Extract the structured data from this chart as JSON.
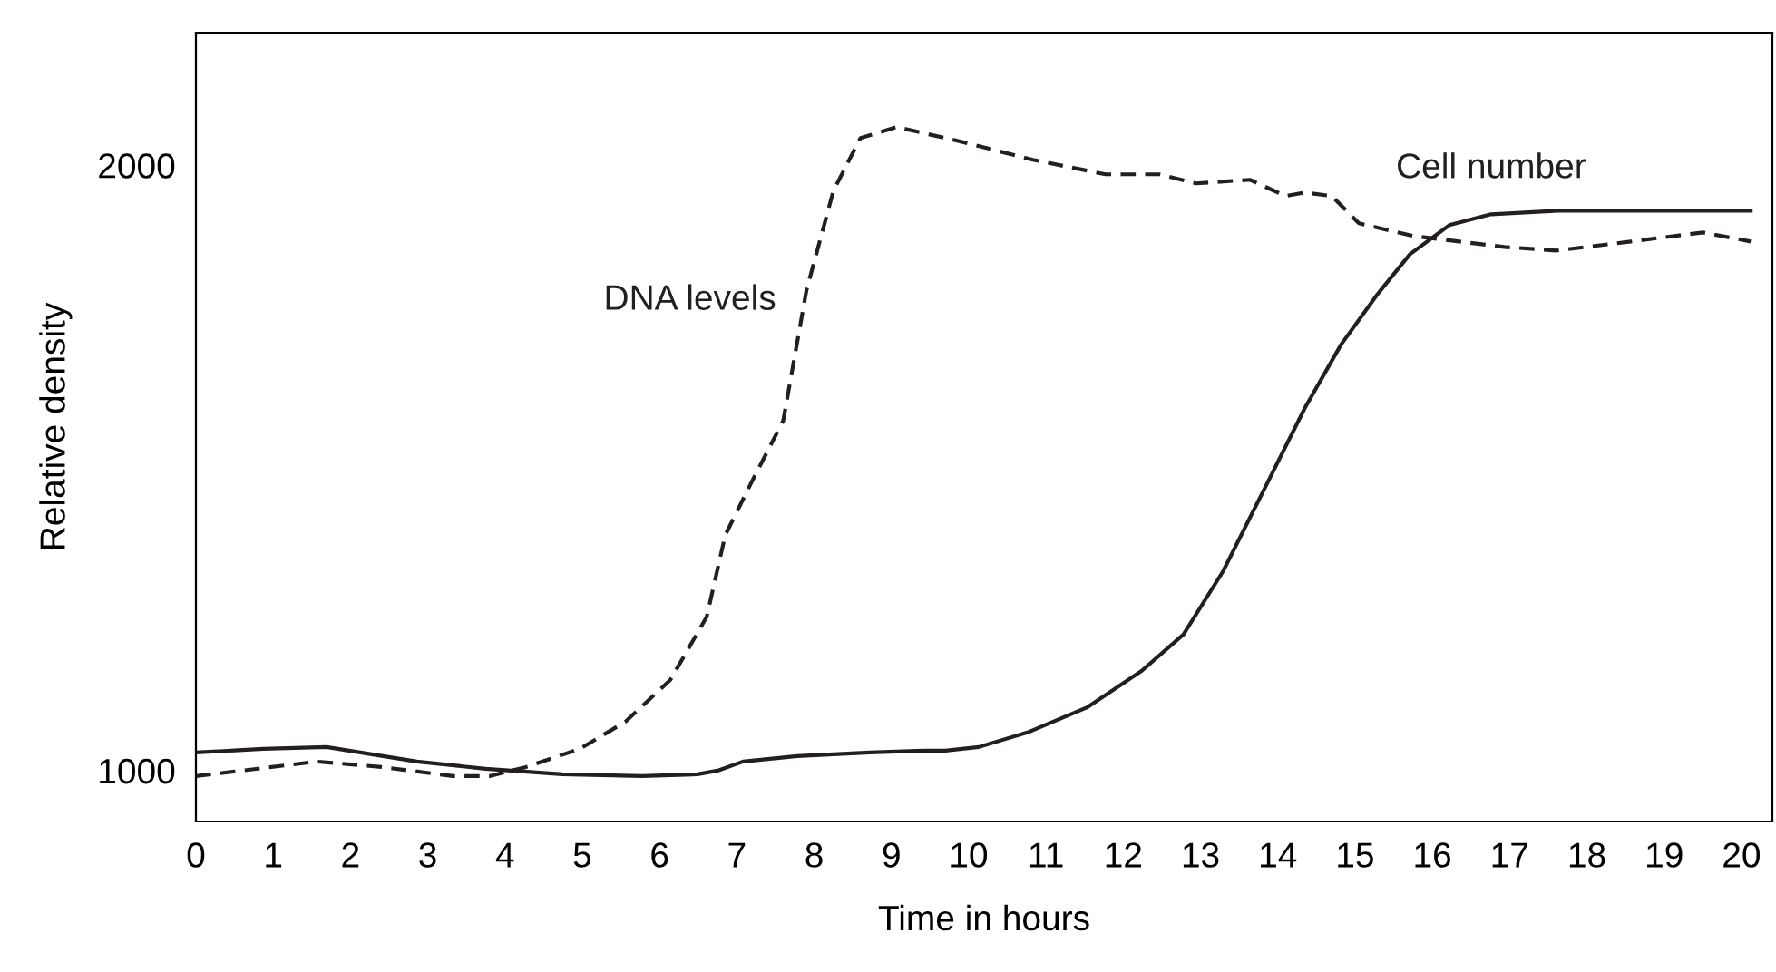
{
  "chart_data": {
    "type": "line",
    "xlabel": "Time in hours",
    "ylabel": "Relative density",
    "xlim": [
      0,
      20.4
    ],
    "ylim": [
      916,
      2219
    ],
    "xticks": [
      0,
      1,
      2,
      3,
      4,
      5,
      6,
      7,
      8,
      9,
      10,
      11,
      12,
      13,
      14,
      15,
      16,
      17,
      18,
      19,
      20
    ],
    "yticks": [
      1000,
      2000
    ],
    "grid": false,
    "legend": false,
    "series": [
      {
        "name": "DNA levels",
        "color": "#231f20",
        "line_style": "dashed",
        "x": [
          0,
          0.98,
          1.57,
          2.4,
          3.33,
          3.8,
          4.27,
          4.97,
          5.56,
          6.14,
          6.61,
          6.85,
          7.2,
          7.6,
          7.9,
          8.25,
          8.6,
          9.07,
          9.9,
          10.83,
          11.77,
          12.47,
          12.94,
          13.64,
          14.1,
          14.35,
          14.7,
          15.05,
          15.76,
          16.93,
          17.6,
          18.57,
          19.5,
          20.12
        ],
        "values": [
          991,
          1006,
          1015,
          1006,
          991,
          991,
          1006,
          1036,
          1081,
          1150,
          1254,
          1389,
          1479,
          1578,
          1793,
          1958,
          2045,
          2063,
          2039,
          2009,
          1985,
          1985,
          1970,
          1976,
          1949,
          1955,
          1949,
          1904,
          1883,
          1865,
          1859,
          1874,
          1889,
          1874
        ]
      },
      {
        "name": "Cell number",
        "color": "#231f20",
        "line_style": "solid",
        "x": [
          0,
          0.87,
          1.69,
          2.86,
          3.75,
          4.74,
          5.77,
          6.49,
          6.75,
          7.08,
          7.78,
          8.72,
          9.43,
          9.7,
          10.13,
          10.76,
          11.54,
          12.24,
          12.78,
          13.29,
          13.88,
          14.35,
          14.82,
          15.29,
          15.71,
          16.22,
          16.76,
          17.63,
          20.12
        ],
        "values": [
          1030,
          1036,
          1039,
          1015,
          1003,
          994,
          991,
          994,
          1000,
          1015,
          1024,
          1030,
          1033,
          1033,
          1039,
          1063,
          1105,
          1165,
          1225,
          1329,
          1479,
          1599,
          1704,
          1787,
          1853,
          1901,
          1919,
          1925,
          1925
        ]
      }
    ]
  }
}
